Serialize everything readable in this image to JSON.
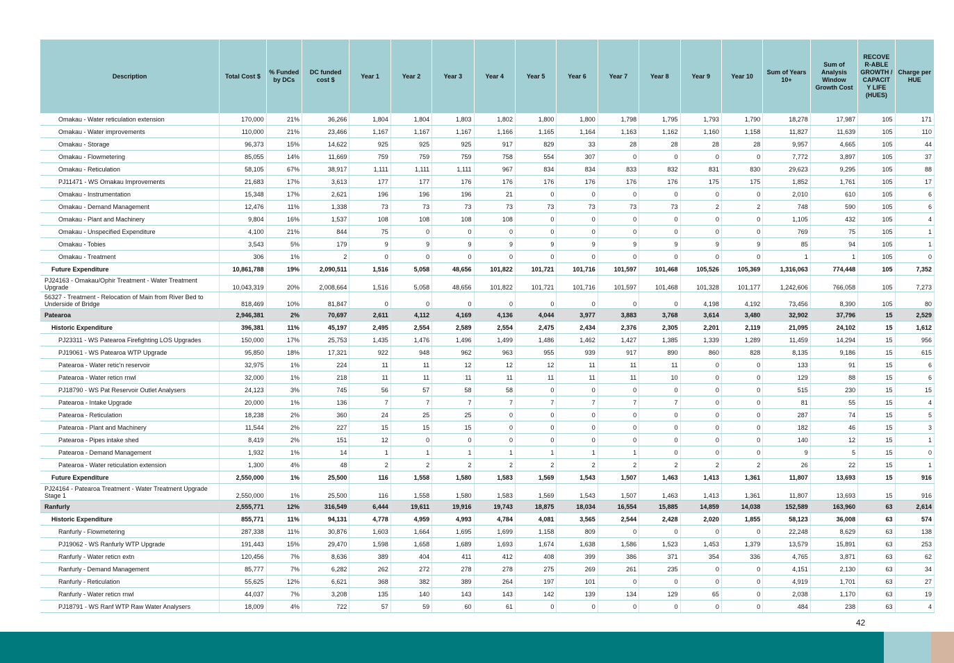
{
  "columns": [
    "Description",
    "Total Cost $",
    "% Funded by DCs",
    "DC funded cost $",
    "Year 1",
    "Year 2",
    "Year 3",
    "Year 4",
    "Year 5",
    "Year 6",
    "Year 7",
    "Year 8",
    "Year 9",
    "Year 10",
    "Sum of Years 10+",
    "Sum of Analysis Window Growth Cost",
    "RECOVE R-ABLE GROWTH / CAPACIT Y LIFE (HUES)",
    "Charge per HUE"
  ],
  "rows": [
    {
      "level": 2,
      "cells": [
        "Omakau - Water reticulation extension",
        "170,000",
        "21%",
        "36,266",
        "1,804",
        "1,804",
        "1,803",
        "1,802",
        "1,800",
        "1,800",
        "1,798",
        "1,795",
        "1,793",
        "1,790",
        "18,278",
        "17,987",
        "105",
        "171"
      ]
    },
    {
      "level": 2,
      "cells": [
        "Omakau - Water improvements",
        "110,000",
        "21%",
        "23,466",
        "1,167",
        "1,167",
        "1,167",
        "1,166",
        "1,165",
        "1,164",
        "1,163",
        "1,162",
        "1,160",
        "1,158",
        "11,827",
        "11,639",
        "105",
        "110"
      ]
    },
    {
      "level": 2,
      "cells": [
        "Omakau - Storage",
        "96,373",
        "15%",
        "14,622",
        "925",
        "925",
        "925",
        "917",
        "829",
        "33",
        "28",
        "28",
        "28",
        "28",
        "9,957",
        "4,665",
        "105",
        "44"
      ]
    },
    {
      "level": 2,
      "cells": [
        "Omakau - Flowmetering",
        "85,055",
        "14%",
        "11,669",
        "759",
        "759",
        "759",
        "758",
        "554",
        "307",
        "0",
        "0",
        "0",
        "0",
        "7,772",
        "3,897",
        "105",
        "37"
      ]
    },
    {
      "level": 2,
      "cells": [
        "Omakau - Reticulation",
        "58,105",
        "67%",
        "38,917",
        "1,111",
        "1,111",
        "1,111",
        "967",
        "834",
        "834",
        "833",
        "832",
        "831",
        "830",
        "29,623",
        "9,295",
        "105",
        "88"
      ]
    },
    {
      "level": 2,
      "cells": [
        "PJ11471 - WS Omakau Improvements",
        "21,683",
        "17%",
        "3,613",
        "177",
        "177",
        "176",
        "176",
        "176",
        "176",
        "176",
        "176",
        "175",
        "175",
        "1,852",
        "1,761",
        "105",
        "17"
      ]
    },
    {
      "level": 2,
      "cells": [
        "Omakau - Instrumentation",
        "15,348",
        "17%",
        "2,621",
        "196",
        "196",
        "196",
        "21",
        "0",
        "0",
        "0",
        "0",
        "0",
        "0",
        "2,010",
        "610",
        "105",
        "6"
      ]
    },
    {
      "level": 2,
      "cells": [
        "Omakau - Demand Management",
        "12,476",
        "11%",
        "1,338",
        "73",
        "73",
        "73",
        "73",
        "73",
        "73",
        "73",
        "73",
        "2",
        "2",
        "748",
        "590",
        "105",
        "6"
      ]
    },
    {
      "level": 2,
      "cells": [
        "Omakau - Plant and Machinery",
        "9,804",
        "16%",
        "1,537",
        "108",
        "108",
        "108",
        "108",
        "0",
        "0",
        "0",
        "0",
        "0",
        "0",
        "1,105",
        "432",
        "105",
        "4"
      ]
    },
    {
      "level": 2,
      "cells": [
        "Omakau - Unspecified Expenditure",
        "4,100",
        "21%",
        "844",
        "75",
        "0",
        "0",
        "0",
        "0",
        "0",
        "0",
        "0",
        "0",
        "0",
        "769",
        "75",
        "105",
        "1"
      ]
    },
    {
      "level": 2,
      "cells": [
        "Omakau - Tobies",
        "3,543",
        "5%",
        "179",
        "9",
        "9",
        "9",
        "9",
        "9",
        "9",
        "9",
        "9",
        "9",
        "9",
        "85",
        "94",
        "105",
        "1"
      ]
    },
    {
      "level": 2,
      "cells": [
        "Omakau - Treatment",
        "306",
        "1%",
        "2",
        "0",
        "0",
        "0",
        "0",
        "0",
        "0",
        "0",
        "0",
        "0",
        "0",
        "1",
        "1",
        "105",
        "0"
      ]
    },
    {
      "level": 1,
      "cells": [
        "Future Expenditure",
        "10,861,788",
        "19%",
        "2,090,511",
        "1,516",
        "5,058",
        "48,656",
        "101,822",
        "101,721",
        "101,716",
        "101,597",
        "101,468",
        "105,526",
        "105,369",
        "1,316,063",
        "774,448",
        "105",
        "7,352"
      ]
    },
    {
      "level": 3,
      "cells": [
        "PJ24163 - Omakau/Ophir Treatment - Water Treatment Upgrade",
        "10,043,319",
        "20%",
        "2,008,664",
        "1,516",
        "5,058",
        "48,656",
        "101,822",
        "101,721",
        "101,716",
        "101,597",
        "101,468",
        "101,328",
        "101,177",
        "1,242,606",
        "766,058",
        "105",
        "7,273"
      ]
    },
    {
      "level": 3,
      "cells": [
        "56327 - Treatment - Relocation of Main from River Bed to Underside of Bridge",
        "818,469",
        "10%",
        "81,847",
        "0",
        "0",
        "0",
        "0",
        "0",
        "0",
        "0",
        "0",
        "4,198",
        "4,192",
        "73,456",
        "8,390",
        "105",
        "80"
      ]
    },
    {
      "level": 0,
      "cells": [
        "Patearoa",
        "2,946,381",
        "2%",
        "70,697",
        "2,611",
        "4,112",
        "4,169",
        "4,136",
        "4,044",
        "3,977",
        "3,883",
        "3,768",
        "3,614",
        "3,480",
        "32,902",
        "37,796",
        "15",
        "2,529"
      ]
    },
    {
      "level": 1,
      "cells": [
        "Historic Expenditure",
        "396,381",
        "11%",
        "45,197",
        "2,495",
        "2,554",
        "2,589",
        "2,554",
        "2,475",
        "2,434",
        "2,376",
        "2,305",
        "2,201",
        "2,119",
        "21,095",
        "24,102",
        "15",
        "1,612"
      ]
    },
    {
      "level": 2,
      "cells": [
        "PJ23311 - WS Patearoa Firefighting LOS Upgrades",
        "150,000",
        "17%",
        "25,753",
        "1,435",
        "1,476",
        "1,496",
        "1,499",
        "1,486",
        "1,462",
        "1,427",
        "1,385",
        "1,339",
        "1,289",
        "11,459",
        "14,294",
        "15",
        "956"
      ]
    },
    {
      "level": 2,
      "cells": [
        "PJ19061 - WS Patearoa WTP Upgrade",
        "95,850",
        "18%",
        "17,321",
        "922",
        "948",
        "962",
        "963",
        "955",
        "939",
        "917",
        "890",
        "860",
        "828",
        "8,135",
        "9,186",
        "15",
        "615"
      ]
    },
    {
      "level": 2,
      "cells": [
        "Patearoa - Water retic'n reservoir",
        "32,975",
        "1%",
        "224",
        "11",
        "11",
        "12",
        "12",
        "12",
        "11",
        "11",
        "11",
        "0",
        "0",
        "133",
        "91",
        "15",
        "6"
      ]
    },
    {
      "level": 2,
      "cells": [
        "Patearoa - Water reticn rnwl",
        "32,000",
        "1%",
        "218",
        "11",
        "11",
        "11",
        "11",
        "11",
        "11",
        "11",
        "10",
        "0",
        "0",
        "129",
        "88",
        "15",
        "6"
      ]
    },
    {
      "level": 2,
      "cells": [
        "PJ18790 - WS Pat Reservoir Outlet Analysers",
        "24,123",
        "3%",
        "745",
        "56",
        "57",
        "58",
        "58",
        "0",
        "0",
        "0",
        "0",
        "0",
        "0",
        "515",
        "230",
        "15",
        "15"
      ]
    },
    {
      "level": 2,
      "cells": [
        "Patearoa - Intake Upgrade",
        "20,000",
        "1%",
        "136",
        "7",
        "7",
        "7",
        "7",
        "7",
        "7",
        "7",
        "7",
        "0",
        "0",
        "81",
        "55",
        "15",
        "4"
      ]
    },
    {
      "level": 2,
      "cells": [
        "Patearoa - Reticulation",
        "18,238",
        "2%",
        "360",
        "24",
        "25",
        "25",
        "0",
        "0",
        "0",
        "0",
        "0",
        "0",
        "0",
        "287",
        "74",
        "15",
        "5"
      ]
    },
    {
      "level": 2,
      "cells": [
        "Patearoa - Plant and Machinery",
        "11,544",
        "2%",
        "227",
        "15",
        "15",
        "15",
        "0",
        "0",
        "0",
        "0",
        "0",
        "0",
        "0",
        "182",
        "46",
        "15",
        "3"
      ]
    },
    {
      "level": 2,
      "cells": [
        "Patearoa - Pipes intake shed",
        "8,419",
        "2%",
        "151",
        "12",
        "0",
        "0",
        "0",
        "0",
        "0",
        "0",
        "0",
        "0",
        "0",
        "140",
        "12",
        "15",
        "1"
      ]
    },
    {
      "level": 2,
      "cells": [
        "Patearoa - Demand Management",
        "1,932",
        "1%",
        "14",
        "1",
        "1",
        "1",
        "1",
        "1",
        "1",
        "1",
        "0",
        "0",
        "0",
        "9",
        "5",
        "15",
        "0"
      ]
    },
    {
      "level": 2,
      "cells": [
        "Patearoa - Water reticulation extension",
        "1,300",
        "4%",
        "48",
        "2",
        "2",
        "2",
        "2",
        "2",
        "2",
        "2",
        "2",
        "2",
        "2",
        "26",
        "22",
        "15",
        "1"
      ]
    },
    {
      "level": 1,
      "cells": [
        "Future Expenditure",
        "2,550,000",
        "1%",
        "25,500",
        "116",
        "1,558",
        "1,580",
        "1,583",
        "1,569",
        "1,543",
        "1,507",
        "1,463",
        "1,413",
        "1,361",
        "11,807",
        "13,693",
        "15",
        "916"
      ]
    },
    {
      "level": 3,
      "cells": [
        "PJ24164 - Patearoa Treatment - Water Treatment Upgrade Stage 1",
        "2,550,000",
        "1%",
        "25,500",
        "116",
        "1,558",
        "1,580",
        "1,583",
        "1,569",
        "1,543",
        "1,507",
        "1,463",
        "1,413",
        "1,361",
        "11,807",
        "13,693",
        "15",
        "916"
      ]
    },
    {
      "level": 0,
      "cells": [
        "Ranfurly",
        "2,555,771",
        "12%",
        "316,549",
        "6,444",
        "19,611",
        "19,916",
        "19,743",
        "18,875",
        "18,034",
        "16,554",
        "15,885",
        "14,859",
        "14,038",
        "152,589",
        "163,960",
        "63",
        "2,614"
      ]
    },
    {
      "level": 1,
      "cells": [
        "Historic Expenditure",
        "855,771",
        "11%",
        "94,131",
        "4,778",
        "4,959",
        "4,993",
        "4,784",
        "4,081",
        "3,565",
        "2,544",
        "2,428",
        "2,020",
        "1,855",
        "58,123",
        "36,008",
        "63",
        "574"
      ]
    },
    {
      "level": 2,
      "cells": [
        "Ranfurly - Flowmetering",
        "287,338",
        "11%",
        "30,876",
        "1,603",
        "1,664",
        "1,695",
        "1,699",
        "1,158",
        "809",
        "0",
        "0",
        "0",
        "0",
        "22,248",
        "8,629",
        "63",
        "138"
      ]
    },
    {
      "level": 2,
      "cells": [
        "PJ19062 - WS Ranfurly WTP Upgrade",
        "191,443",
        "15%",
        "29,470",
        "1,598",
        "1,658",
        "1,689",
        "1,693",
        "1,674",
        "1,638",
        "1,586",
        "1,523",
        "1,453",
        "1,379",
        "13,579",
        "15,891",
        "63",
        "253"
      ]
    },
    {
      "level": 2,
      "cells": [
        "Ranfurly - Water reticn extn",
        "120,456",
        "7%",
        "8,636",
        "389",
        "404",
        "411",
        "412",
        "408",
        "399",
        "386",
        "371",
        "354",
        "336",
        "4,765",
        "3,871",
        "63",
        "62"
      ]
    },
    {
      "level": 2,
      "cells": [
        "Ranfurly - Demand Management",
        "85,777",
        "7%",
        "6,282",
        "262",
        "272",
        "278",
        "278",
        "275",
        "269",
        "261",
        "235",
        "0",
        "0",
        "4,151",
        "2,130",
        "63",
        "34"
      ]
    },
    {
      "level": 2,
      "cells": [
        "Ranfurly - Reticulation",
        "55,625",
        "12%",
        "6,621",
        "368",
        "382",
        "389",
        "264",
        "197",
        "101",
        "0",
        "0",
        "0",
        "0",
        "4,919",
        "1,701",
        "63",
        "27"
      ]
    },
    {
      "level": 2,
      "cells": [
        "Ranfurly - Water reticn rnwl",
        "44,037",
        "7%",
        "3,208",
        "135",
        "140",
        "143",
        "143",
        "142",
        "139",
        "134",
        "129",
        "65",
        "0",
        "2,038",
        "1,170",
        "63",
        "19"
      ]
    },
    {
      "level": 2,
      "cells": [
        "PJ18791 - WS Ranf WTP Raw Water Analysers",
        "18,009",
        "4%",
        "722",
        "57",
        "59",
        "60",
        "61",
        "0",
        "0",
        "0",
        "0",
        "0",
        "0",
        "484",
        "238",
        "63",
        "4"
      ]
    }
  ],
  "page_number": "42",
  "colors": {
    "header": "#a2cfd3",
    "group_row": "#dcdcdc",
    "footer_bar": "#007a7c",
    "footer_accent1": "#a2cfd3",
    "footer_accent2": "#d4b5a0"
  }
}
